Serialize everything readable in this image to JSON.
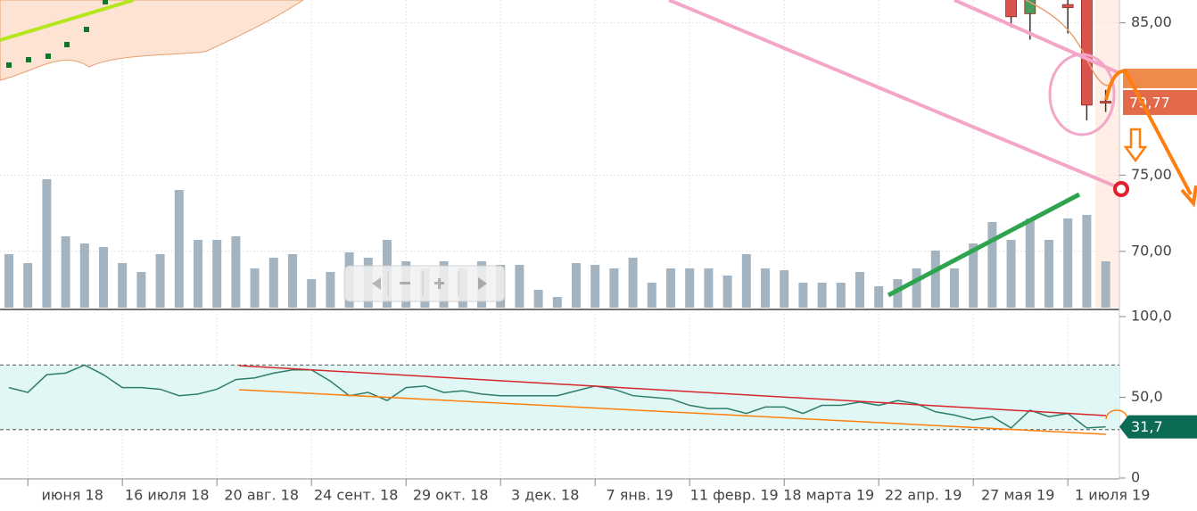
{
  "chart_data": [
    {
      "type": "candlestick",
      "ylim": [
        66.3,
        86.5
      ],
      "yticks": [
        {
          "value": 85,
          "label": "85,00"
        },
        {
          "value": 75,
          "label": "75,00"
        },
        {
          "value": 70,
          "label": "70,00"
        }
      ],
      "open": [
        null,
        null,
        null,
        null,
        null,
        null,
        null,
        null,
        null,
        null,
        null,
        null,
        null,
        null,
        null,
        null,
        null,
        null,
        null,
        null,
        null,
        null,
        null,
        null,
        null,
        null,
        null,
        null,
        null,
        null,
        null,
        null,
        null,
        null,
        null,
        null,
        null,
        null,
        null,
        null,
        null,
        null,
        null,
        null,
        null,
        null,
        null,
        null,
        null,
        null,
        null,
        null,
        null,
        86.6,
        85.6,
        null,
        86.2,
        86.6,
        79.85
      ],
      "high": [
        null,
        null,
        null,
        null,
        null,
        null,
        null,
        null,
        null,
        null,
        null,
        null,
        null,
        null,
        null,
        null,
        null,
        null,
        null,
        null,
        null,
        null,
        null,
        null,
        null,
        null,
        null,
        null,
        null,
        null,
        null,
        null,
        null,
        null,
        null,
        null,
        null,
        null,
        null,
        null,
        null,
        null,
        null,
        null,
        null,
        null,
        null,
        null,
        null,
        null,
        null,
        null,
        null,
        86.8,
        86.8,
        null,
        86.8,
        86.8,
        80.6
      ],
      "low": [
        null,
        null,
        null,
        null,
        null,
        null,
        null,
        null,
        null,
        null,
        null,
        null,
        null,
        null,
        null,
        null,
        null,
        null,
        null,
        null,
        null,
        null,
        null,
        null,
        null,
        null,
        null,
        null,
        null,
        null,
        null,
        null,
        null,
        null,
        null,
        null,
        null,
        null,
        null,
        null,
        null,
        null,
        null,
        null,
        null,
        null,
        null,
        null,
        null,
        null,
        null,
        null,
        null,
        84.7,
        83.9,
        null,
        84.3,
        78.6,
        79.15
      ],
      "close": [
        null,
        null,
        null,
        null,
        null,
        null,
        null,
        null,
        null,
        null,
        null,
        null,
        null,
        null,
        null,
        null,
        null,
        null,
        null,
        null,
        null,
        null,
        null,
        null,
        null,
        null,
        null,
        null,
        null,
        null,
        null,
        null,
        null,
        null,
        null,
        null,
        null,
        null,
        null,
        null,
        null,
        null,
        null,
        null,
        null,
        null,
        null,
        null,
        null,
        null,
        null,
        null,
        null,
        85.4,
        86.8,
        null,
        86.0,
        79.6,
        79.77
      ],
      "up_color": "#4a9c5d",
      "down_color": "#d9534f",
      "last_label": "79,77",
      "grid": true
    },
    {
      "type": "bar",
      "ylim": [
        0,
        100
      ],
      "color": "#a3b3bf",
      "values": [
        30,
        25,
        72,
        40,
        36,
        34,
        25,
        20,
        30,
        66,
        38,
        38,
        40,
        22,
        28,
        30,
        16,
        20,
        31,
        28,
        38,
        26,
        22,
        26,
        22,
        26,
        24,
        24,
        10,
        6,
        25,
        24,
        22,
        28,
        14,
        22,
        22,
        22,
        18,
        30,
        22,
        21,
        14,
        14,
        14,
        20,
        12,
        16,
        22,
        32,
        22,
        36,
        48,
        38,
        50,
        38,
        50,
        52,
        26
      ]
    },
    {
      "type": "line",
      "ylim": [
        0,
        100
      ],
      "yticks": [
        {
          "value": 100,
          "label": "100,0"
        },
        {
          "value": 50,
          "label": "50,0"
        },
        0
      ],
      "levels": [
        70,
        30
      ],
      "color": "#2e7d6a",
      "values": [
        56,
        53,
        64,
        65,
        70,
        64,
        56,
        56,
        55,
        51,
        52,
        55,
        61,
        62,
        65,
        67,
        67,
        60,
        51,
        53,
        48,
        56,
        57,
        53,
        54,
        52,
        51,
        51,
        51,
        51,
        54,
        57,
        55,
        51,
        50,
        49,
        45,
        43,
        43,
        40,
        44,
        44,
        40,
        45,
        45,
        47,
        45,
        48,
        46,
        41,
        39,
        36,
        38,
        31,
        42,
        38,
        40,
        31,
        31.7
      ],
      "value_labels": [
        null,
        null,
        null,
        null,
        null,
        null,
        null,
        null,
        null,
        null,
        null,
        null,
        null,
        null,
        null,
        null,
        null,
        null,
        null,
        null,
        null,
        null,
        null,
        null,
        null,
        null,
        null,
        null,
        null,
        null,
        null,
        null,
        null,
        null,
        null,
        null,
        null,
        null,
        null,
        null,
        null,
        null,
        null,
        null,
        null,
        null,
        null,
        null,
        null,
        null,
        null,
        null,
        null,
        null,
        null,
        null,
        null,
        null,
        "31,7"
      ],
      "categories": [
        null,
        "июня 18",
        null,
        null,
        null,
        null,
        "16 июля 18",
        null,
        null,
        null,
        null,
        "20 авг. 18",
        null,
        null,
        null,
        null,
        "24 сент. 18",
        null,
        null,
        null,
        null,
        "29 окт. 18",
        null,
        null,
        null,
        null,
        "3 дек. 18",
        null,
        null,
        null,
        null,
        "7 янв. 19",
        null,
        null,
        null,
        null,
        "11 февр. 19",
        null,
        null,
        null,
        null,
        "18 марта 19",
        null,
        null,
        null,
        null,
        "22 апр. 19",
        null,
        null,
        null,
        null,
        "27 мая 19",
        null,
        null,
        null,
        null,
        "1 июля 19",
        null,
        null
      ],
      "grid": true
    }
  ]
}
